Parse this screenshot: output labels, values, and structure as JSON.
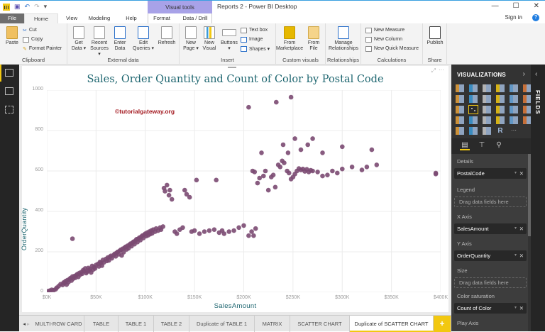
{
  "window": {
    "title": "Reports 2 - Power BI Desktop",
    "contextual_group": "Visual tools",
    "controls": {
      "minimize": "—",
      "maximize": "☐",
      "close": "✕"
    },
    "sign_in": "Sign in",
    "help": "?"
  },
  "ribbon_tabs": [
    "File",
    "Home",
    "View",
    "Modeling",
    "Help",
    "Format",
    "Data / Drill"
  ],
  "ribbon": {
    "clipboard": {
      "label": "Clipboard",
      "paste": "Paste",
      "cut": "Cut",
      "copy": "Copy",
      "format_painter": "Format Painter"
    },
    "external_data": {
      "label": "External data",
      "get_data": "Get Data ▾",
      "get_data_1": "Get",
      "get_data_2": "Data ▾",
      "recent_1": "Recent",
      "recent_2": "Sources ▾",
      "enter_1": "Enter",
      "enter_2": "Data",
      "edit_1": "Edit",
      "edit_2": "Queries ▾",
      "refresh": "Refresh"
    },
    "insert": {
      "label": "Insert",
      "newpage_1": "New",
      "newpage_2": "Page ▾",
      "newvisual_1": "New",
      "newvisual_2": "Visual",
      "buttons_1": "Buttons",
      "buttons_2": "▾",
      "textbox": "Text box",
      "image": "Image",
      "shapes": "Shapes ▾"
    },
    "custom_visuals": {
      "label": "Custom visuals",
      "market_1": "From",
      "market_2": "Marketplace",
      "file_1": "From",
      "file_2": "File"
    },
    "relationships": {
      "label": "Relationships",
      "manage_1": "Manage",
      "manage_2": "Relationships"
    },
    "calculations": {
      "label": "Calculations",
      "new_measure": "New Measure",
      "new_column": "New Column",
      "new_quick_measure": "New Quick Measure"
    },
    "share": {
      "label": "Share",
      "publish": "Publish"
    }
  },
  "visual": {
    "title": "Sales, Order Quantity and Count of Color by Postal Code",
    "watermark": "©tutorialgateway.org",
    "accent": "#7b4a72"
  },
  "chart_data": {
    "type": "scatter",
    "title": "Sales, Order Quantity and Count of Color by Postal Code",
    "xlabel": "SalesAmount",
    "ylabel": "OrderQuantity",
    "xlim": [
      0,
      400000
    ],
    "ylim": [
      0,
      1000
    ],
    "x_ticks": [
      "$0K",
      "$50K",
      "$100K",
      "$150K",
      "$200K",
      "$250K",
      "$300K",
      "$350K",
      "$400K"
    ],
    "y_ticks": [
      "0",
      "200",
      "400",
      "600",
      "800",
      "1000"
    ],
    "grid": true,
    "marker_color": "#7b4a72",
    "points": [
      [
        1,
        5
      ],
      [
        3,
        8
      ],
      [
        5,
        12
      ],
      [
        7,
        10
      ],
      [
        9,
        15
      ],
      [
        10,
        22
      ],
      [
        12,
        30
      ],
      [
        14,
        40
      ],
      [
        16,
        36
      ],
      [
        17,
        48
      ],
      [
        18,
        45
      ],
      [
        19,
        55
      ],
      [
        20,
        38
      ],
      [
        21,
        60
      ],
      [
        22,
        50
      ],
      [
        23,
        65
      ],
      [
        24,
        70
      ],
      [
        25,
        58
      ],
      [
        26,
        78
      ],
      [
        27,
        68
      ],
      [
        28,
        80
      ],
      [
        29,
        72
      ],
      [
        30,
        85
      ],
      [
        31,
        90
      ],
      [
        32,
        76
      ],
      [
        33,
        95
      ],
      [
        34,
        88
      ],
      [
        35,
        100
      ],
      [
        36,
        92
      ],
      [
        37,
        110
      ],
      [
        38,
        105
      ],
      [
        39,
        118
      ],
      [
        40,
        95
      ],
      [
        41,
        102
      ],
      [
        42,
        120
      ],
      [
        43,
        108
      ],
      [
        44,
        115
      ],
      [
        45,
        98
      ],
      [
        46,
        130
      ],
      [
        47,
        112
      ],
      [
        48,
        125
      ],
      [
        49,
        118
      ],
      [
        50,
        135
      ],
      [
        52,
        140
      ],
      [
        53,
        128
      ],
      [
        54,
        150
      ],
      [
        55,
        145
      ],
      [
        56,
        132
      ],
      [
        57,
        160
      ],
      [
        58,
        148
      ],
      [
        60,
        165
      ],
      [
        61,
        155
      ],
      [
        62,
        172
      ],
      [
        63,
        158
      ],
      [
        64,
        175
      ],
      [
        65,
        180
      ],
      [
        66,
        168
      ],
      [
        68,
        185
      ],
      [
        69,
        190
      ],
      [
        70,
        178
      ],
      [
        71,
        195
      ],
      [
        72,
        200
      ],
      [
        73,
        188
      ],
      [
        74,
        205
      ],
      [
        75,
        210
      ],
      [
        76,
        182
      ],
      [
        77,
        215
      ],
      [
        78,
        198
      ],
      [
        79,
        220
      ],
      [
        80,
        225
      ],
      [
        81,
        212
      ],
      [
        82,
        230
      ],
      [
        83,
        218
      ],
      [
        84,
        235
      ],
      [
        85,
        240
      ],
      [
        86,
        228
      ],
      [
        87,
        245
      ],
      [
        88,
        250
      ],
      [
        89,
        238
      ],
      [
        90,
        255
      ],
      [
        91,
        262
      ],
      [
        92,
        248
      ],
      [
        93,
        265
      ],
      [
        94,
        270
      ],
      [
        95,
        258
      ],
      [
        96,
        275
      ],
      [
        97,
        280
      ],
      [
        98,
        268
      ],
      [
        99,
        285
      ],
      [
        100,
        290
      ],
      [
        101,
        278
      ],
      [
        102,
        295
      ],
      [
        103,
        282
      ],
      [
        104,
        300
      ],
      [
        105,
        288
      ],
      [
        106,
        305
      ],
      [
        107,
        292
      ],
      [
        108,
        310
      ],
      [
        110,
        300
      ],
      [
        111,
        315
      ],
      [
        113,
        305
      ],
      [
        115,
        320
      ],
      [
        116,
        310
      ],
      [
        118,
        325
      ],
      [
        119,
        515
      ],
      [
        120,
        500
      ],
      [
        122,
        530
      ],
      [
        124,
        480
      ],
      [
        125,
        505
      ],
      [
        127,
        460
      ],
      [
        130,
        300
      ],
      [
        132,
        290
      ],
      [
        135,
        310
      ],
      [
        138,
        320
      ],
      [
        140,
        505
      ],
      [
        142,
        485
      ],
      [
        145,
        470
      ],
      [
        147,
        300
      ],
      [
        150,
        305
      ],
      [
        152,
        555
      ],
      [
        155,
        290
      ],
      [
        160,
        300
      ],
      [
        165,
        305
      ],
      [
        170,
        310
      ],
      [
        172,
        555
      ],
      [
        175,
        295
      ],
      [
        178,
        305
      ],
      [
        180,
        290
      ],
      [
        185,
        300
      ],
      [
        190,
        305
      ],
      [
        195,
        320
      ],
      [
        200,
        330
      ],
      [
        205,
        280
      ],
      [
        208,
        300
      ],
      [
        210,
        280
      ],
      [
        212,
        315
      ],
      [
        214,
        540
      ],
      [
        216,
        565
      ],
      [
        218,
        690
      ],
      [
        220,
        575
      ],
      [
        222,
        600
      ],
      [
        225,
        505
      ],
      [
        228,
        570
      ],
      [
        230,
        580
      ],
      [
        232,
        520
      ],
      [
        235,
        630
      ],
      [
        237,
        620
      ],
      [
        239,
        650
      ],
      [
        241,
        640
      ],
      [
        244,
        600
      ],
      [
        246,
        590
      ],
      [
        248,
        560
      ],
      [
        250,
        570
      ],
      [
        252,
        585
      ],
      [
        254,
        600
      ],
      [
        256,
        612
      ],
      [
        258,
        605
      ],
      [
        260,
        610
      ],
      [
        262,
        598
      ],
      [
        264,
        608
      ],
      [
        266,
        595
      ],
      [
        268,
        603
      ],
      [
        270,
        600
      ],
      [
        275,
        595
      ],
      [
        280,
        575
      ],
      [
        285,
        580
      ],
      [
        290,
        600
      ],
      [
        295,
        590
      ],
      [
        300,
        610
      ],
      [
        310,
        620
      ],
      [
        320,
        605
      ],
      [
        325,
        620
      ],
      [
        335,
        630
      ],
      [
        395,
        585
      ],
      [
        395,
        590
      ],
      [
        205,
        915
      ],
      [
        233,
        940
      ],
      [
        248,
        965
      ],
      [
        209,
        600
      ],
      [
        211,
        595
      ],
      [
        240,
        730
      ],
      [
        245,
        690
      ],
      [
        252,
        760
      ],
      [
        258,
        705
      ],
      [
        265,
        730
      ],
      [
        270,
        760
      ],
      [
        280,
        690
      ],
      [
        300,
        720
      ],
      [
        330,
        705
      ],
      [
        26,
        265
      ]
    ]
  },
  "left_nav": [
    {
      "name": "report-view",
      "icon": "bar-chart-icon"
    },
    {
      "name": "data-view",
      "icon": "table-icon"
    },
    {
      "name": "model-view",
      "icon": "relationships-icon"
    }
  ],
  "page_tabs": [
    "MULTI-ROW CARD",
    "TABLE",
    "TABLE 1",
    "TABLE 2",
    "Duplicate of TABLE 1",
    "MATRIX",
    "SCATTER CHART",
    "Duplicate of SCATTER CHART"
  ],
  "page_tab_add": "+",
  "page_nav": {
    "prev": "◂",
    "next": "▸"
  },
  "visualizations": {
    "title": "VISUALIZATIONS",
    "collapse": "›",
    "more": "···",
    "r_visual": "R",
    "wells": [
      {
        "label": "Details",
        "field": "PostalCode"
      },
      {
        "label": "Legend",
        "placeholder": "Drag data fields here"
      },
      {
        "label": "X Axis",
        "field": "SalesAmount"
      },
      {
        "label": "Y Axis",
        "field": "OrderQuantity"
      },
      {
        "label": "Size",
        "placeholder": "Drag data fields here"
      },
      {
        "label": "Color saturation",
        "field": "Count of Color"
      },
      {
        "label": "Play Axis"
      }
    ],
    "remove": "✕",
    "dropdown": "▾"
  },
  "fields_pane": {
    "title": "FIELDS",
    "expand": "‹"
  }
}
